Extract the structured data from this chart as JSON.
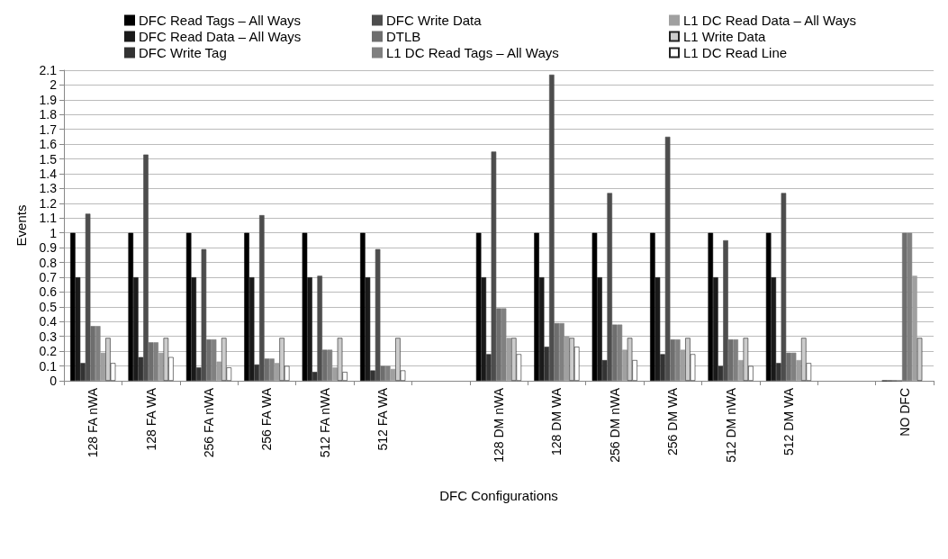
{
  "chart_data": {
    "type": "bar",
    "xlabel": "DFC Configurations",
    "ylabel": "Events",
    "categories": [
      "128 FA nWA",
      "128 FA WA",
      "256 FA nWA",
      "256 FA WA",
      "512 FA nWA",
      "512 FA WA",
      null,
      "128 DM nWA",
      "128 DM WA",
      "256 DM nWA",
      "256 DM WA",
      "512 DM nWA",
      "512 DM WA",
      null,
      "NO DFC"
    ],
    "series": [
      {
        "name": "DFC Read Tags – All Ways",
        "color": "#000000",
        "values": [
          1,
          1,
          1,
          1,
          1,
          1,
          null,
          1,
          1,
          1,
          1,
          1,
          1,
          null,
          0
        ]
      },
      {
        "name": "DFC Read Data – All Ways",
        "color": "#1a1a1a",
        "values": [
          0.7,
          0.7,
          0.7,
          0.7,
          0.7,
          0.7,
          null,
          0.7,
          0.7,
          0.7,
          0.7,
          0.7,
          0.7,
          null,
          0
        ]
      },
      {
        "name": "DFC Write Tag",
        "color": "#333333",
        "values": [
          0.12,
          0.16,
          0.09,
          0.11,
          0.06,
          0.07,
          null,
          0.18,
          0.23,
          0.14,
          0.18,
          0.1,
          0.12,
          null,
          0
        ]
      },
      {
        "name": "DFC Write Data",
        "color": "#4d4d4d",
        "values": [
          1.13,
          1.53,
          0.89,
          1.12,
          0.71,
          0.89,
          null,
          1.55,
          2.07,
          1.27,
          1.65,
          0.95,
          1.27,
          null,
          0
        ]
      },
      {
        "name": "DTLB",
        "color": "#6e6e6e",
        "values": [
          0.37,
          0.26,
          0.28,
          0.15,
          0.21,
          0.1,
          null,
          0.49,
          0.39,
          0.38,
          0.28,
          0.28,
          0.19,
          null,
          1
        ]
      },
      {
        "name": "L1 DC Read Tags – All Ways",
        "color": "#808080",
        "values": [
          0.37,
          0.26,
          0.28,
          0.15,
          0.21,
          0.1,
          null,
          0.49,
          0.39,
          0.38,
          0.28,
          0.28,
          0.19,
          null,
          1
        ]
      },
      {
        "name": "L1 DC Read Data – All Ways",
        "color": "#a0a0a0",
        "values": [
          0.19,
          0.19,
          0.13,
          0.12,
          0.09,
          0.08,
          null,
          0.29,
          0.3,
          0.21,
          0.21,
          0.14,
          0.14,
          null,
          0.71
        ]
      },
      {
        "name": "L1 Write Data",
        "color": "#cccccc",
        "values": [
          0.29,
          0.29,
          0.29,
          0.29,
          0.29,
          0.29,
          null,
          0.29,
          0.29,
          0.29,
          0.29,
          0.29,
          0.29,
          null,
          0.29
        ]
      },
      {
        "name": "L1 DC Read Line",
        "color": "#ffffff",
        "values": [
          0.12,
          0.16,
          0.09,
          0.1,
          0.06,
          0.07,
          null,
          0.18,
          0.23,
          0.14,
          0.18,
          0.1,
          0.12,
          null,
          null
        ]
      }
    ],
    "ylim": [
      0,
      2.1
    ],
    "yticks": [
      0,
      0.1,
      0.2,
      0.3,
      0.4,
      0.5,
      0.6,
      0.7,
      0.8,
      0.9,
      1,
      1.1,
      1.2,
      1.3,
      1.4,
      1.5,
      1.6,
      1.7,
      1.8,
      1.9,
      2,
      2.1
    ],
    "grid": "y",
    "legend": "top"
  }
}
